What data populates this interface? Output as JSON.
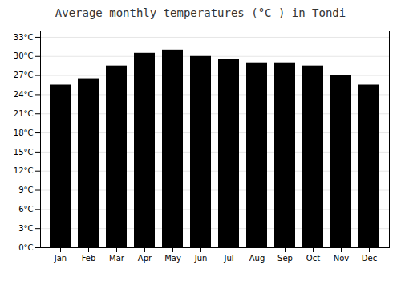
{
  "chart_data": {
    "type": "bar",
    "title": "Average monthly temperatures (°C ) in Tondi",
    "categories": [
      "Jan",
      "Feb",
      "Mar",
      "Apr",
      "May",
      "Jun",
      "Jul",
      "Aug",
      "Sep",
      "Oct",
      "Nov",
      "Dec"
    ],
    "values": [
      25.5,
      26.5,
      28.5,
      30.5,
      31.0,
      30.0,
      29.5,
      29.0,
      29.0,
      28.5,
      27.0,
      25.5
    ],
    "ylim": [
      0,
      34
    ],
    "yticks": [
      {
        "value": 0,
        "label": "0°C"
      },
      {
        "value": 3,
        "label": "3°C"
      },
      {
        "value": 6,
        "label": "6°C"
      },
      {
        "value": 9,
        "label": "9°C"
      },
      {
        "value": 12,
        "label": "12°C"
      },
      {
        "value": 15,
        "label": "15°C"
      },
      {
        "value": 18,
        "label": "18°C"
      },
      {
        "value": 21,
        "label": "21°C"
      },
      {
        "value": 24,
        "label": "24°C"
      },
      {
        "value": 27,
        "label": "27°C"
      },
      {
        "value": 30,
        "label": "30°C"
      },
      {
        "value": 33,
        "label": "33°C"
      }
    ],
    "grid": true
  }
}
